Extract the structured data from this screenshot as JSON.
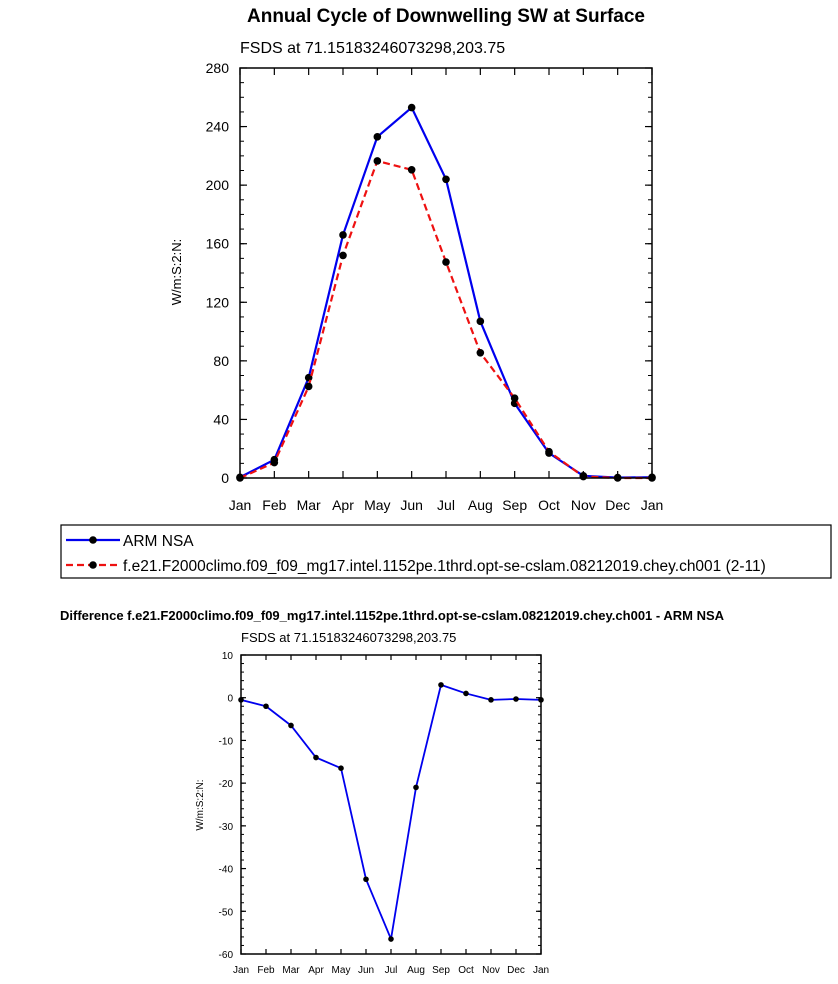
{
  "chart_data": [
    {
      "type": "line",
      "title": "Annual Cycle of Downwelling SW at Surface",
      "subtitle": "FSDS at 71.15183246073298,203.75",
      "xlabel": "",
      "ylabel": "W/m:S:2:N:",
      "categories": [
        "Jan",
        "Feb",
        "Mar",
        "Apr",
        "May",
        "Jun",
        "Jul",
        "Aug",
        "Sep",
        "Oct",
        "Nov",
        "Dec",
        "Jan"
      ],
      "ylim": [
        0,
        280
      ],
      "yticks": [
        0,
        40,
        80,
        120,
        160,
        200,
        240,
        280
      ],
      "series": [
        {
          "name": "ARM NSA",
          "color": "#0000ee",
          "dash": "solid",
          "values": [
            0.5,
            12.5,
            68.5,
            166,
            233,
            253,
            204,
            107,
            51,
            17,
            1.5,
            0.3,
            0.5
          ]
        },
        {
          "name": "f.e21.F2000climo.f09_f09_mg17.intel.1152pe.1thrd.opt-se-cslam.08212019.chey.ch001 (2-11)",
          "color": "#ee1111",
          "dash": "dashed",
          "values": [
            0,
            10.5,
            62.5,
            152,
            216.5,
            210.5,
            147.5,
            85.5,
            54.5,
            18,
            1,
            0,
            0
          ]
        }
      ]
    },
    {
      "type": "line",
      "title": "Difference f.e21.F2000climo.f09_f09_mg17.intel.1152pe.1thrd.opt-se-cslam.08212019.chey.ch001 - ARM NSA",
      "subtitle": "FSDS at 71.15183246073298,203.75",
      "xlabel": "",
      "ylabel": "W/m:S:2:N:",
      "categories": [
        "Jan",
        "Feb",
        "Mar",
        "Apr",
        "May",
        "Jun",
        "Jul",
        "Aug",
        "Sep",
        "Oct",
        "Nov",
        "Dec",
        "Jan"
      ],
      "ylim": [
        -60,
        10
      ],
      "yticks": [
        10,
        0,
        -10,
        -20,
        -30,
        -40,
        -50,
        -60
      ],
      "series": [
        {
          "name": "Difference",
          "color": "#0000ee",
          "dash": "solid",
          "values": [
            -0.5,
            -2,
            -6.5,
            -14,
            -16.5,
            -42.5,
            -56.5,
            -21,
            3,
            1,
            -0.5,
            -0.3,
            -0.5
          ]
        }
      ]
    }
  ]
}
